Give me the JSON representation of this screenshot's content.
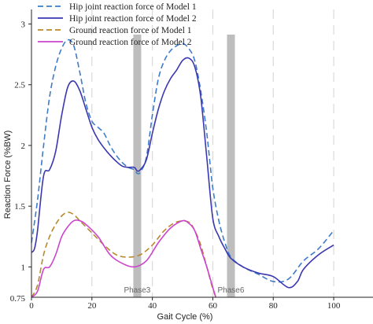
{
  "chart_data": {
    "type": "line",
    "title": "",
    "xlabel": "Gait Cycle (%)",
    "ylabel": "Reaction Force (%BW)",
    "xlim": [
      0,
      113
    ],
    "ylim": [
      0.75,
      3.12
    ],
    "xticks": [
      0,
      20,
      40,
      60,
      80,
      100
    ],
    "yticks": [
      1,
      1.5,
      2,
      2.5,
      3
    ],
    "y_origin_label": "0.75",
    "legend_position": "top-left",
    "grid": "vertical dashed",
    "gridlines_x": [
      20,
      40,
      60,
      80,
      100
    ],
    "series": [
      {
        "name": "Hip joint reaction force of Model 1",
        "style": "dashed",
        "color": "#3d7cc9",
        "x": [
          0,
          2,
          4,
          6,
          8,
          10,
          12,
          14,
          16,
          18,
          20,
          22,
          24,
          26,
          28,
          30,
          32,
          34,
          35,
          36,
          38,
          40,
          42,
          44,
          46,
          48,
          50,
          52,
          54,
          56,
          58,
          60,
          62,
          64,
          66,
          70,
          75,
          80,
          85,
          90,
          95,
          100
        ],
        "y": [
          1.2,
          1.55,
          2.0,
          2.4,
          2.65,
          2.8,
          2.87,
          2.82,
          2.6,
          2.35,
          2.2,
          2.15,
          2.1,
          2.0,
          1.92,
          1.86,
          1.82,
          1.8,
          1.77,
          1.78,
          1.9,
          2.25,
          2.55,
          2.7,
          2.78,
          2.82,
          2.84,
          2.8,
          2.7,
          2.45,
          2.1,
          1.65,
          1.38,
          1.2,
          1.08,
          1.0,
          0.94,
          0.88,
          0.9,
          1.05,
          1.15,
          1.3
        ]
      },
      {
        "name": "Hip joint reaction force of Model 2",
        "style": "solid",
        "color": "#3a37b0",
        "x": [
          0,
          1,
          2,
          4,
          6,
          8,
          10,
          12,
          14,
          16,
          18,
          20,
          22,
          24,
          26,
          28,
          30,
          32,
          34,
          35,
          36,
          38,
          40,
          42,
          44,
          46,
          48,
          50,
          52,
          54,
          56,
          58,
          60,
          62,
          64,
          66,
          70,
          75,
          80,
          85,
          88,
          90,
          95,
          100
        ],
        "y": [
          1.12,
          1.15,
          1.3,
          1.75,
          1.8,
          1.95,
          2.25,
          2.48,
          2.53,
          2.45,
          2.3,
          2.15,
          2.05,
          1.98,
          1.92,
          1.87,
          1.83,
          1.82,
          1.82,
          1.79,
          1.8,
          1.88,
          2.1,
          2.3,
          2.45,
          2.55,
          2.62,
          2.7,
          2.72,
          2.65,
          2.4,
          1.9,
          1.4,
          1.25,
          1.15,
          1.07,
          1.0,
          0.95,
          0.92,
          0.83,
          0.88,
          0.98,
          1.1,
          1.18
        ]
      },
      {
        "name": "Ground reaction force of Model 1",
        "style": "dashed",
        "color": "#b8892e",
        "x": [
          0,
          2,
          4,
          6,
          8,
          10,
          12,
          14,
          16,
          20,
          24,
          28,
          32,
          36,
          40,
          44,
          48,
          52,
          54,
          56,
          58,
          60,
          61
        ],
        "y": [
          0.75,
          0.85,
          1.1,
          1.25,
          1.35,
          1.42,
          1.45,
          1.43,
          1.38,
          1.28,
          1.18,
          1.1,
          1.08,
          1.1,
          1.18,
          1.3,
          1.37,
          1.37,
          1.3,
          1.18,
          1.0,
          0.82,
          0.75
        ]
      },
      {
        "name": "Ground reaction force of Model 2",
        "style": "solid",
        "color": "#cc44cc",
        "x": [
          0,
          2,
          4,
          6,
          8,
          10,
          12,
          14,
          16,
          18,
          22,
          26,
          30,
          34,
          38,
          42,
          46,
          50,
          52,
          54,
          56,
          58,
          60,
          61
        ],
        "y": [
          0.75,
          0.8,
          0.98,
          1.0,
          1.1,
          1.25,
          1.33,
          1.38,
          1.38,
          1.35,
          1.25,
          1.1,
          1.03,
          1.0,
          1.05,
          1.2,
          1.32,
          1.38,
          1.36,
          1.3,
          1.15,
          1.0,
          0.83,
          0.75
        ]
      }
    ],
    "phase_bands": [
      {
        "label": "Phase3",
        "x": 35
      },
      {
        "label": "Phase6",
        "x": 66
      }
    ]
  }
}
